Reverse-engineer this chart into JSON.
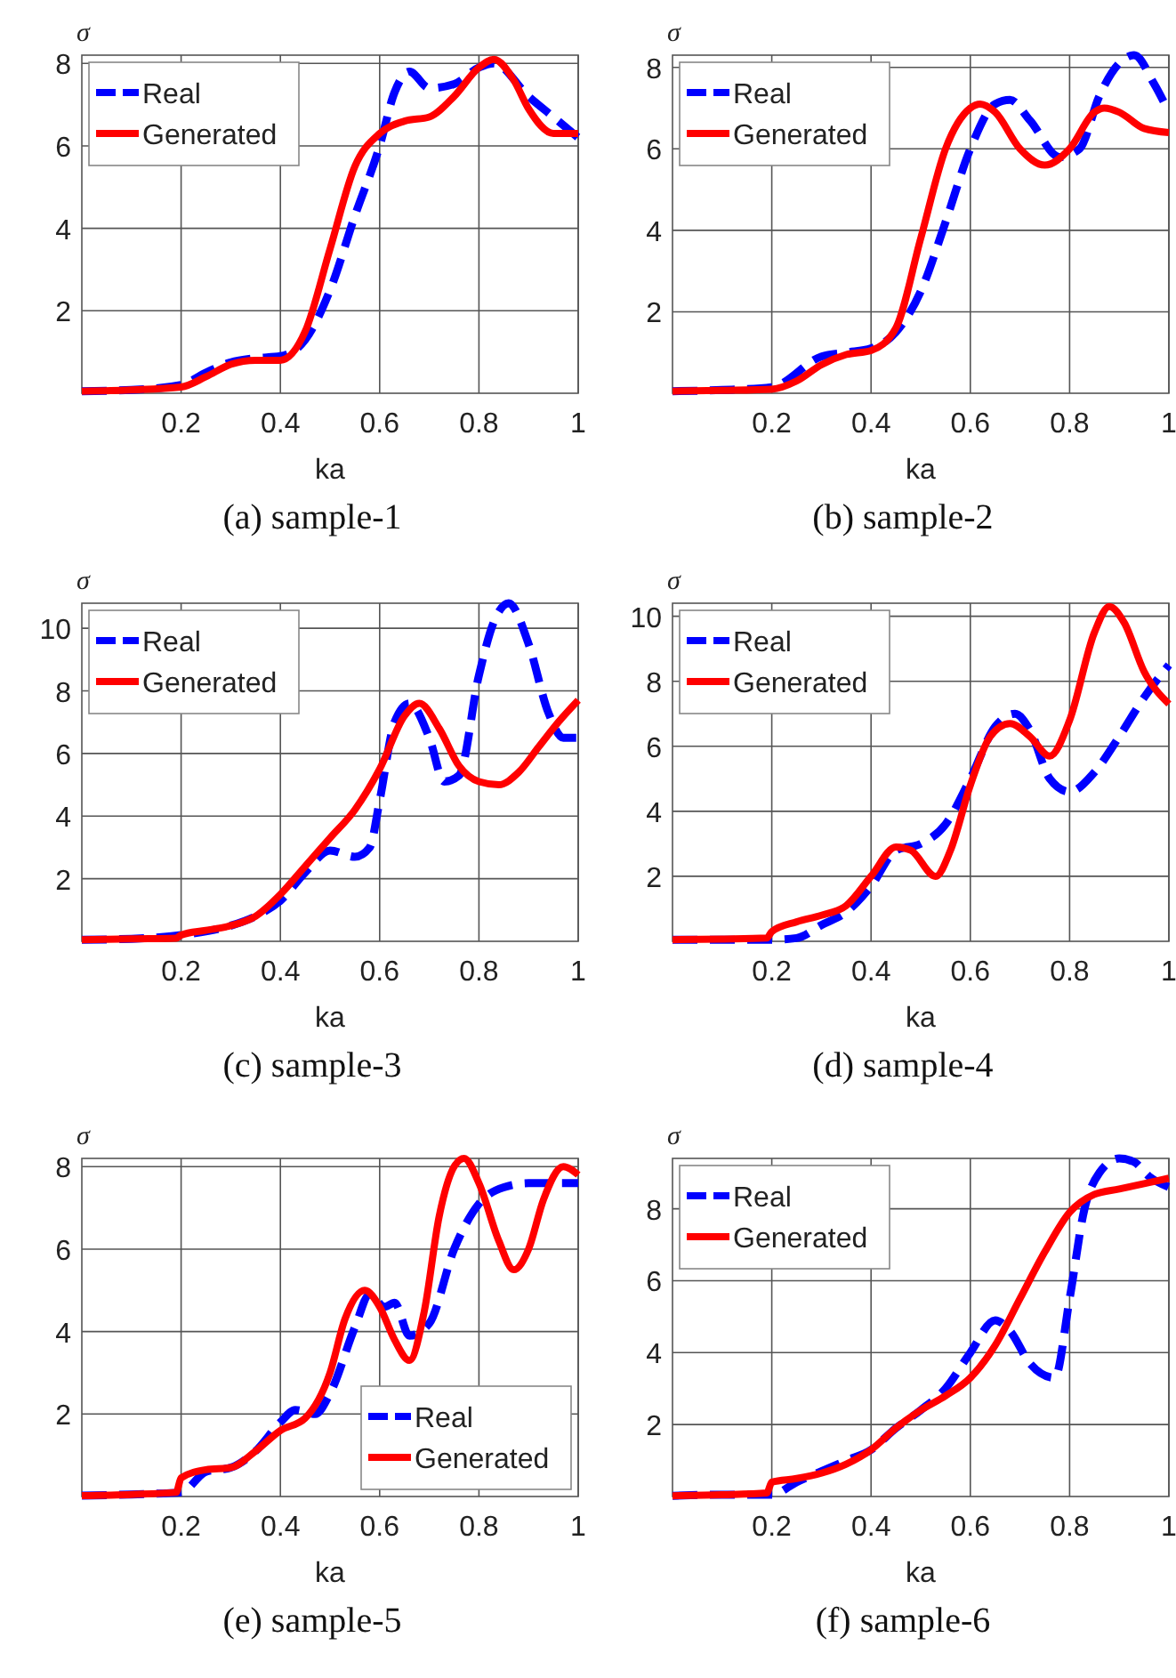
{
  "chart_data": [
    {
      "type": "line",
      "title": "(a) sample-1",
      "xlabel": "ka",
      "ylabel": "σ",
      "xlim": [
        0,
        1
      ],
      "ylim": [
        0,
        8.2
      ],
      "xticks": [
        0.2,
        0.4,
        0.6,
        0.8,
        1
      ],
      "yticks": [
        2,
        4,
        6,
        8
      ],
      "grid": true,
      "legend": "top left",
      "series": [
        {
          "name": "Real",
          "color": "#0000ff",
          "line_style": "dashed",
          "x": [
            0,
            0.1,
            0.2,
            0.25,
            0.3,
            0.35,
            0.4,
            0.45,
            0.5,
            0.55,
            0.6,
            0.63,
            0.66,
            0.7,
            0.75,
            0.8,
            0.83,
            0.9,
            0.95,
            1
          ],
          "values": [
            0.05,
            0.08,
            0.2,
            0.5,
            0.75,
            0.85,
            0.9,
            1.3,
            2.5,
            4.3,
            6.0,
            7.3,
            7.8,
            7.4,
            7.5,
            7.9,
            8.0,
            7.2,
            6.7,
            6.2
          ]
        },
        {
          "name": "Generated",
          "color": "#ff0000",
          "line_style": "solid",
          "x": [
            0,
            0.1,
            0.2,
            0.25,
            0.3,
            0.35,
            0.4,
            0.45,
            0.5,
            0.55,
            0.6,
            0.65,
            0.7,
            0.75,
            0.8,
            0.83,
            0.87,
            0.9,
            0.95,
            1
          ],
          "values": [
            0.05,
            0.08,
            0.15,
            0.4,
            0.7,
            0.8,
            0.8,
            1.5,
            3.5,
            5.5,
            6.3,
            6.6,
            6.7,
            7.2,
            7.9,
            8.1,
            7.6,
            6.9,
            6.3,
            6.3
          ]
        }
      ]
    },
    {
      "type": "line",
      "title": "(b) sample-2",
      "xlabel": "ka",
      "ylabel": "σ",
      "xlim": [
        0,
        1
      ],
      "ylim": [
        0,
        8.3
      ],
      "xticks": [
        0.2,
        0.4,
        0.6,
        0.8,
        1
      ],
      "yticks": [
        2,
        4,
        6,
        8
      ],
      "grid": true,
      "legend": "top left",
      "series": [
        {
          "name": "Real",
          "color": "#0000ff",
          "line_style": "dashed",
          "x": [
            0,
            0.1,
            0.2,
            0.3,
            0.35,
            0.4,
            0.45,
            0.5,
            0.55,
            0.6,
            0.65,
            0.68,
            0.72,
            0.78,
            0.82,
            0.86,
            0.9,
            0.93,
            0.97,
            1
          ],
          "values": [
            0.05,
            0.08,
            0.15,
            0.9,
            1.0,
            1.1,
            1.5,
            2.5,
            4.2,
            6.0,
            7.1,
            7.2,
            6.7,
            5.8,
            6.0,
            7.3,
            8.1,
            8.3,
            7.6,
            6.9
          ]
        },
        {
          "name": "Generated",
          "color": "#ff0000",
          "line_style": "solid",
          "x": [
            0,
            0.1,
            0.2,
            0.25,
            0.3,
            0.35,
            0.4,
            0.45,
            0.5,
            0.55,
            0.6,
            0.62,
            0.65,
            0.7,
            0.75,
            0.8,
            0.85,
            0.87,
            0.9,
            0.95,
            1
          ],
          "values": [
            0.05,
            0.07,
            0.1,
            0.3,
            0.7,
            0.95,
            1.05,
            1.6,
            3.8,
            6.0,
            7.0,
            7.1,
            6.9,
            6.0,
            5.6,
            6.0,
            6.9,
            7.0,
            6.9,
            6.5,
            6.4
          ]
        }
      ]
    },
    {
      "type": "line",
      "title": "(c) sample-3",
      "xlabel": "ka",
      "ylabel": "σ",
      "xlim": [
        0,
        1
      ],
      "ylim": [
        0,
        10.8
      ],
      "xticks": [
        0.2,
        0.4,
        0.6,
        0.8,
        1
      ],
      "yticks": [
        2,
        4,
        6,
        8,
        10
      ],
      "grid": true,
      "legend": "top left",
      "series": [
        {
          "name": "Real",
          "color": "#0000ff",
          "line_style": "dashed",
          "x": [
            0,
            0.1,
            0.2,
            0.3,
            0.35,
            0.4,
            0.45,
            0.5,
            0.55,
            0.58,
            0.6,
            0.63,
            0.66,
            0.7,
            0.73,
            0.76,
            0.8,
            0.83,
            0.86,
            0.9,
            0.94,
            0.97,
            1
          ],
          "values": [
            0.05,
            0.08,
            0.2,
            0.5,
            0.8,
            1.3,
            2.2,
            2.9,
            2.7,
            3.0,
            4.5,
            7.0,
            7.6,
            6.5,
            5.1,
            5.3,
            8.5,
            10.2,
            10.8,
            9.5,
            7.3,
            6.5,
            6.5
          ]
        },
        {
          "name": "Generated",
          "color": "#ff0000",
          "line_style": "solid",
          "x": [
            0,
            0.1,
            0.19,
            0.2,
            0.25,
            0.3,
            0.35,
            0.4,
            0.45,
            0.5,
            0.55,
            0.6,
            0.65,
            0.68,
            0.72,
            0.76,
            0.8,
            0.84,
            0.88,
            0.92,
            0.96,
            1
          ],
          "values": [
            0.05,
            0.08,
            0.1,
            0.2,
            0.35,
            0.5,
            0.8,
            1.5,
            2.4,
            3.3,
            4.2,
            5.5,
            7.2,
            7.6,
            6.8,
            5.6,
            5.1,
            5.0,
            5.4,
            6.2,
            7.0,
            7.7
          ]
        }
      ]
    },
    {
      "type": "line",
      "title": "(d) sample-4",
      "xlabel": "ka",
      "ylabel": "σ",
      "xlim": [
        0,
        1
      ],
      "ylim": [
        0,
        10.4
      ],
      "xticks": [
        0.2,
        0.4,
        0.6,
        0.8,
        1
      ],
      "yticks": [
        2,
        4,
        6,
        8,
        10
      ],
      "grid": true,
      "legend": "top left",
      "series": [
        {
          "name": "Real",
          "color": "#0000ff",
          "line_style": "dashed",
          "x": [
            0,
            0.1,
            0.2,
            0.25,
            0.3,
            0.35,
            0.4,
            0.45,
            0.5,
            0.55,
            0.6,
            0.65,
            0.69,
            0.72,
            0.76,
            0.8,
            0.85,
            0.9,
            0.95,
            1
          ],
          "values": [
            0.05,
            0.05,
            0.05,
            0.1,
            0.5,
            0.9,
            1.7,
            2.8,
            3.0,
            3.6,
            5.0,
            6.6,
            7.0,
            6.5,
            5.0,
            4.6,
            5.2,
            6.3,
            7.5,
            8.5
          ]
        },
        {
          "name": "Generated",
          "color": "#ff0000",
          "line_style": "solid",
          "x": [
            0,
            0.1,
            0.19,
            0.2,
            0.25,
            0.3,
            0.35,
            0.4,
            0.45,
            0.48,
            0.53,
            0.56,
            0.6,
            0.64,
            0.68,
            0.72,
            0.76,
            0.8,
            0.85,
            0.88,
            0.91,
            0.95,
            1
          ],
          "values": [
            0.05,
            0.07,
            0.1,
            0.3,
            0.6,
            0.8,
            1.1,
            2.0,
            2.9,
            2.8,
            2.0,
            2.8,
            4.8,
            6.3,
            6.7,
            6.3,
            5.7,
            6.8,
            9.5,
            10.3,
            9.8,
            8.3,
            7.3
          ]
        }
      ]
    },
    {
      "type": "line",
      "title": "(e) sample-5",
      "xlabel": "ka",
      "ylabel": "σ",
      "xlim": [
        0,
        1
      ],
      "ylim": [
        0,
        8.2
      ],
      "xticks": [
        0.2,
        0.4,
        0.6,
        0.8,
        1
      ],
      "yticks": [
        2,
        4,
        6,
        8
      ],
      "grid": true,
      "legend": "bottom right",
      "series": [
        {
          "name": "Real",
          "color": "#0000ff",
          "line_style": "dashed",
          "x": [
            0,
            0.1,
            0.2,
            0.25,
            0.3,
            0.35,
            0.4,
            0.43,
            0.47,
            0.5,
            0.55,
            0.58,
            0.61,
            0.63,
            0.66,
            0.7,
            0.75,
            0.8,
            0.85,
            0.9,
            0.95,
            1
          ],
          "values": [
            0.02,
            0.05,
            0.1,
            0.6,
            0.7,
            1.1,
            1.8,
            2.1,
            2.0,
            2.5,
            4.1,
            4.9,
            4.6,
            4.7,
            3.9,
            4.2,
            6.0,
            7.1,
            7.5,
            7.6,
            7.6,
            7.6
          ]
        },
        {
          "name": "Generated",
          "color": "#ff0000",
          "line_style": "solid",
          "x": [
            0,
            0.1,
            0.19,
            0.2,
            0.25,
            0.3,
            0.35,
            0.4,
            0.45,
            0.5,
            0.53,
            0.57,
            0.6,
            0.63,
            0.66,
            0.69,
            0.72,
            0.75,
            0.77,
            0.8,
            0.84,
            0.87,
            0.9,
            0.93,
            0.97,
            1
          ],
          "values": [
            0.02,
            0.05,
            0.1,
            0.45,
            0.65,
            0.7,
            1.1,
            1.6,
            1.9,
            3.0,
            4.3,
            5.0,
            4.6,
            3.8,
            3.3,
            4.5,
            6.8,
            8.0,
            8.2,
            7.6,
            6.2,
            5.5,
            6.0,
            7.2,
            8.0,
            7.8
          ]
        }
      ]
    },
    {
      "type": "line",
      "title": "(f) sample-6",
      "xlabel": "ka",
      "ylabel": "σ",
      "xlim": [
        0,
        1
      ],
      "ylim": [
        0,
        9.4
      ],
      "xticks": [
        0.2,
        0.4,
        0.6,
        0.8,
        1
      ],
      "yticks": [
        2,
        4,
        6,
        8
      ],
      "grid": true,
      "legend": "top left",
      "series": [
        {
          "name": "Real",
          "color": "#0000ff",
          "line_style": "dashed",
          "x": [
            0,
            0.1,
            0.2,
            0.25,
            0.3,
            0.35,
            0.4,
            0.45,
            0.5,
            0.55,
            0.6,
            0.65,
            0.68,
            0.72,
            0.77,
            0.8,
            0.83,
            0.86,
            0.9,
            0.93,
            0.96,
            1
          ],
          "values": [
            0.02,
            0.05,
            0.05,
            0.4,
            0.7,
            1.0,
            1.3,
            1.9,
            2.4,
            3.0,
            4.0,
            4.9,
            4.6,
            3.7,
            3.3,
            5.5,
            8.0,
            9.0,
            9.4,
            9.3,
            8.9,
            8.6
          ]
        },
        {
          "name": "Generated",
          "color": "#ff0000",
          "line_style": "solid",
          "x": [
            0,
            0.1,
            0.19,
            0.2,
            0.25,
            0.3,
            0.35,
            0.4,
            0.45,
            0.5,
            0.55,
            0.6,
            0.65,
            0.7,
            0.75,
            0.8,
            0.85,
            0.9,
            0.95,
            1
          ],
          "values": [
            0.02,
            0.05,
            0.1,
            0.4,
            0.5,
            0.65,
            0.9,
            1.3,
            1.9,
            2.4,
            2.8,
            3.3,
            4.2,
            5.5,
            6.8,
            7.9,
            8.4,
            8.55,
            8.7,
            8.85
          ]
        }
      ]
    }
  ]
}
